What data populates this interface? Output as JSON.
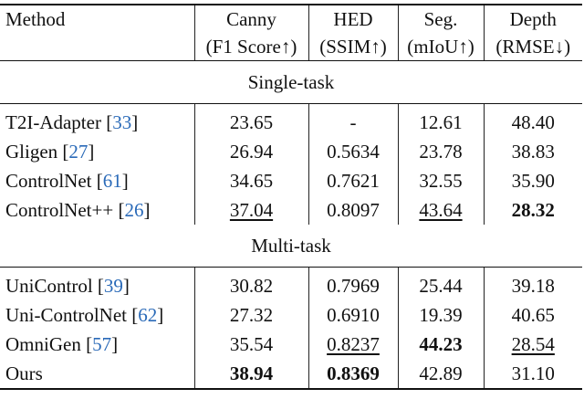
{
  "cite_brackets": [
    "[",
    "]"
  ],
  "header": {
    "columns": [
      [
        "Method"
      ],
      [
        "Canny",
        "(F1 Score↑)"
      ],
      [
        "HED",
        "(SSIM↑)"
      ],
      [
        "Seg.",
        "(mIoU↑)"
      ],
      [
        "Depth",
        "(RMSE↓)"
      ]
    ]
  },
  "sections": [
    {
      "title": "Single-task",
      "rows": [
        {
          "method": "T2I-Adapter",
          "ref": "33",
          "values": [
            "23.65",
            "-",
            "12.61",
            "48.40"
          ],
          "bold": [],
          "underline": []
        },
        {
          "method": "Gligen",
          "ref": "27",
          "values": [
            "26.94",
            "0.5634",
            "23.78",
            "38.83"
          ],
          "bold": [],
          "underline": []
        },
        {
          "method": "ControlNet",
          "ref": "61",
          "values": [
            "34.65",
            "0.7621",
            "32.55",
            "35.90"
          ],
          "bold": [],
          "underline": []
        },
        {
          "method": "ControlNet++",
          "ref": "26",
          "values": [
            "37.04",
            "0.8097",
            "43.64",
            "28.32"
          ],
          "bold": [
            3
          ],
          "underline": [
            0,
            2
          ]
        }
      ]
    },
    {
      "title": "Multi-task",
      "rows": [
        {
          "method": "UniControl",
          "ref": "39",
          "values": [
            "30.82",
            "0.7969",
            "25.44",
            "39.18"
          ],
          "bold": [],
          "underline": []
        },
        {
          "method": "Uni-ControlNet",
          "ref": "62",
          "values": [
            "27.32",
            "0.6910",
            "19.39",
            "40.65"
          ],
          "bold": [],
          "underline": []
        },
        {
          "method": "OmniGen",
          "ref": "57",
          "values": [
            "35.54",
            "0.8237",
            "44.23",
            "28.54"
          ],
          "bold": [
            2
          ],
          "underline": [
            1,
            3
          ]
        },
        {
          "method": "Ours",
          "values": [
            "38.94",
            "0.8369",
            "42.89",
            "31.10"
          ],
          "bold": [
            0,
            1
          ],
          "underline": []
        }
      ]
    }
  ]
}
